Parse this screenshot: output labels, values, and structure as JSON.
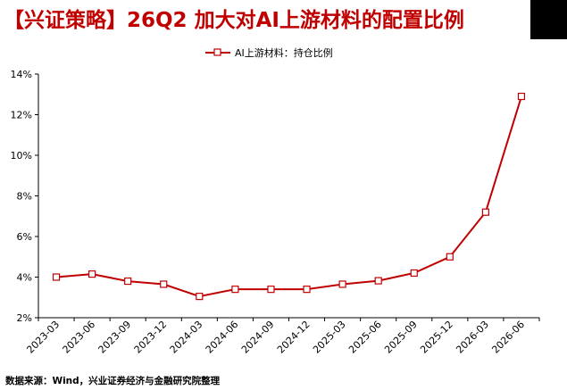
{
  "header": {
    "title": "【兴证策略】26Q2 加大对AI上游材料的配置比例"
  },
  "footer": {
    "source": "数据来源：Wind，兴业证券经济与金融研究院整理"
  },
  "colors": {
    "title": "#c00000",
    "series": "#c00000",
    "marker_fill": "#ffffff"
  },
  "chart_data": {
    "type": "line",
    "title": "",
    "xlabel": "",
    "ylabel": "",
    "x": [
      "2023-03",
      "2023-06",
      "2023-09",
      "2023-12",
      "2024-03",
      "2024-06",
      "2024-09",
      "2024-12",
      "2025-03",
      "2025-06",
      "2025-09",
      "2025-12",
      "2026-03",
      "2026-06"
    ],
    "series": [
      {
        "name": "AI上游材料：持仓比例",
        "values": [
          4.0,
          4.15,
          3.8,
          3.65,
          3.05,
          3.4,
          3.4,
          3.4,
          3.65,
          3.82,
          4.2,
          5.0,
          7.2,
          12.9
        ]
      }
    ],
    "ylim": [
      2,
      14
    ],
    "yticks": [
      "2%",
      "4%",
      "6%",
      "8%",
      "10%",
      "12%",
      "14%"
    ],
    "ytick_values": [
      2,
      4,
      6,
      8,
      10,
      12,
      14
    ],
    "grid": false,
    "legend": "top-center",
    "marker": "square-hollow"
  }
}
